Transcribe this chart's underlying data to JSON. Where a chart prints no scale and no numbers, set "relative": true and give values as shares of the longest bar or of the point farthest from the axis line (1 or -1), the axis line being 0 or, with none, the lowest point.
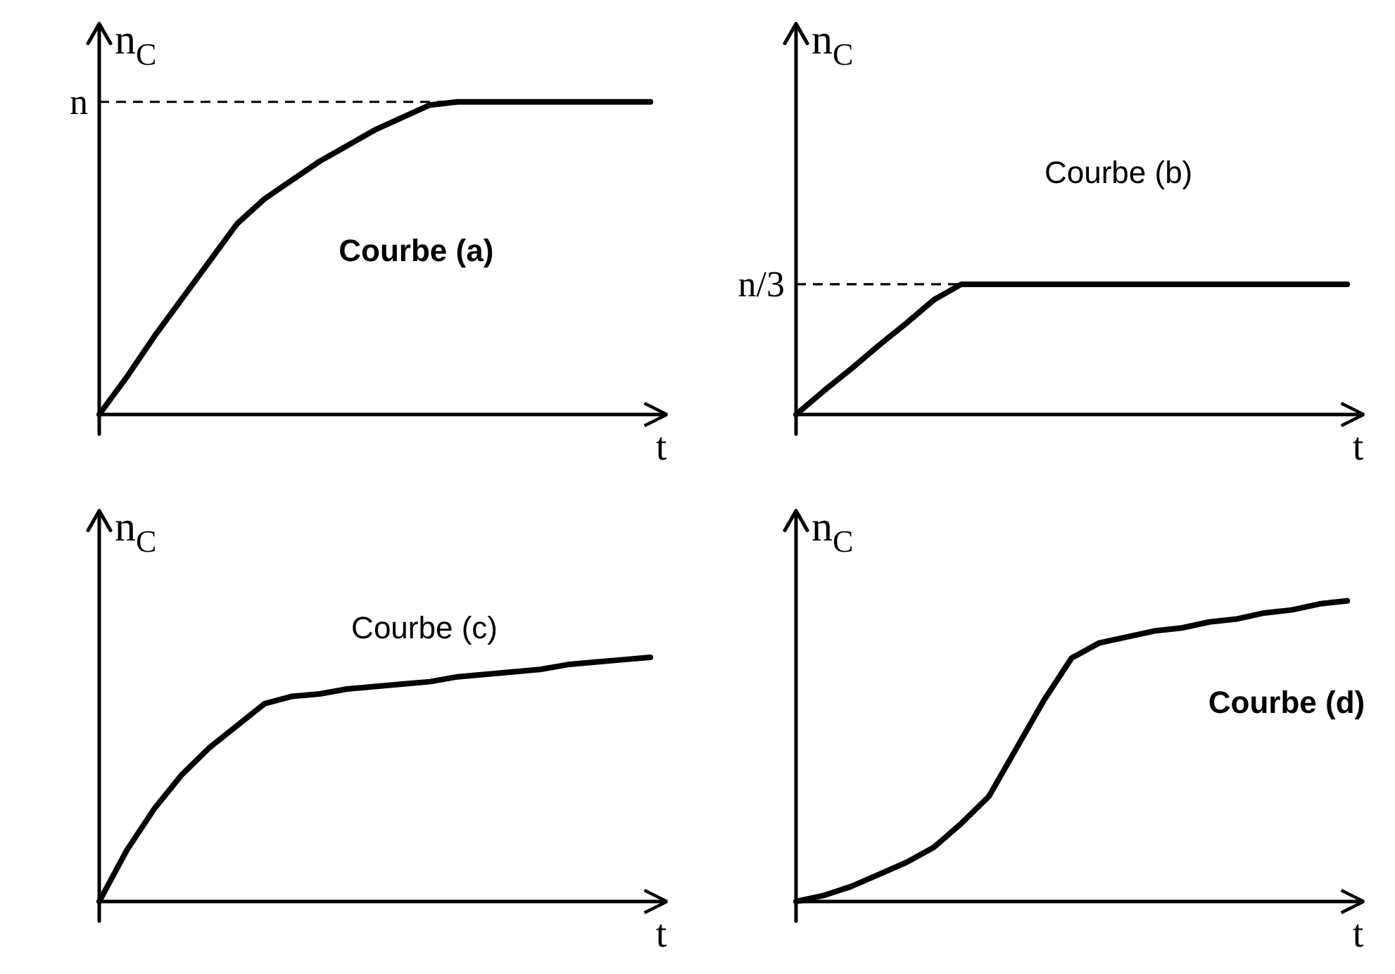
{
  "chart_data": [
    {
      "type": "line",
      "relative": true,
      "ylabel": "n$_{C}$",
      "xlabel": "t",
      "categories": [
        null,
        null,
        null,
        null,
        null,
        null,
        null,
        null,
        null,
        null,
        null,
        null,
        null,
        null,
        null,
        null,
        null,
        null,
        null,
        null,
        null
      ],
      "series": [
        {
          "color": "#000000",
          "values": [
            0,
            0.12,
            0.25,
            0.37,
            0.49,
            0.61,
            0.69,
            0.75,
            0.81,
            0.86,
            0.91,
            0.95,
            0.99,
            1,
            1,
            1,
            1,
            1,
            1,
            1,
            1
          ]
        }
      ],
      "annotations": [
        "Courbe (a)"
      ],
      "ref_lines": [
        {
          "axis": "y",
          "value": 1,
          "label": "n",
          "line_style": "dashed"
        }
      ]
    },
    {
      "type": "line",
      "relative": true,
      "ylabel": "n$_{C}$",
      "xlabel": "t",
      "categories": [
        null,
        null,
        null,
        null,
        null,
        null,
        null,
        null,
        null,
        null,
        null,
        null,
        null,
        null,
        null,
        null,
        null,
        null,
        null,
        null,
        null
      ],
      "series": [
        {
          "color": "#000000",
          "values": [
            0,
            0.18,
            0.35,
            0.53,
            0.7,
            0.88,
            1,
            1,
            1,
            1,
            1,
            1,
            1,
            1,
            1,
            1,
            1,
            1,
            1,
            1,
            1
          ]
        }
      ],
      "annotations": [
        "Courbe (b)"
      ],
      "ref_lines": [
        {
          "axis": "y",
          "value": 1,
          "label": "n/3",
          "line_style": "dashed"
        }
      ]
    },
    {
      "type": "line",
      "relative": true,
      "ylabel": "n$_{C}$",
      "xlabel": "t",
      "categories": [
        null,
        null,
        null,
        null,
        null,
        null,
        null,
        null,
        null,
        null,
        null,
        null,
        null,
        null,
        null,
        null,
        null,
        null,
        null,
        null,
        null
      ],
      "series": [
        {
          "color": "#000000",
          "values": [
            0,
            0.21,
            0.38,
            0.52,
            0.63,
            0.72,
            0.81,
            0.84,
            0.85,
            0.87,
            0.88,
            0.89,
            0.9,
            0.92,
            0.93,
            0.94,
            0.95,
            0.97,
            0.98,
            0.99,
            1
          ]
        }
      ],
      "annotations": [
        "Courbe (c)"
      ]
    },
    {
      "type": "line",
      "relative": true,
      "ylabel": "n$_{C}$",
      "xlabel": "t",
      "categories": [
        null,
        null,
        null,
        null,
        null,
        null,
        null,
        null,
        null,
        null,
        null,
        null,
        null,
        null,
        null,
        null,
        null,
        null,
        null,
        null,
        null
      ],
      "series": [
        {
          "color": "#000000",
          "values": [
            0,
            0.02,
            0.05,
            0.09,
            0.13,
            0.18,
            0.26,
            0.35,
            0.51,
            0.67,
            0.81,
            0.86,
            0.88,
            0.9,
            0.91,
            0.93,
            0.94,
            0.96,
            0.97,
            0.99,
            1
          ]
        }
      ],
      "annotations": [
        "Courbe (d)"
      ]
    }
  ]
}
